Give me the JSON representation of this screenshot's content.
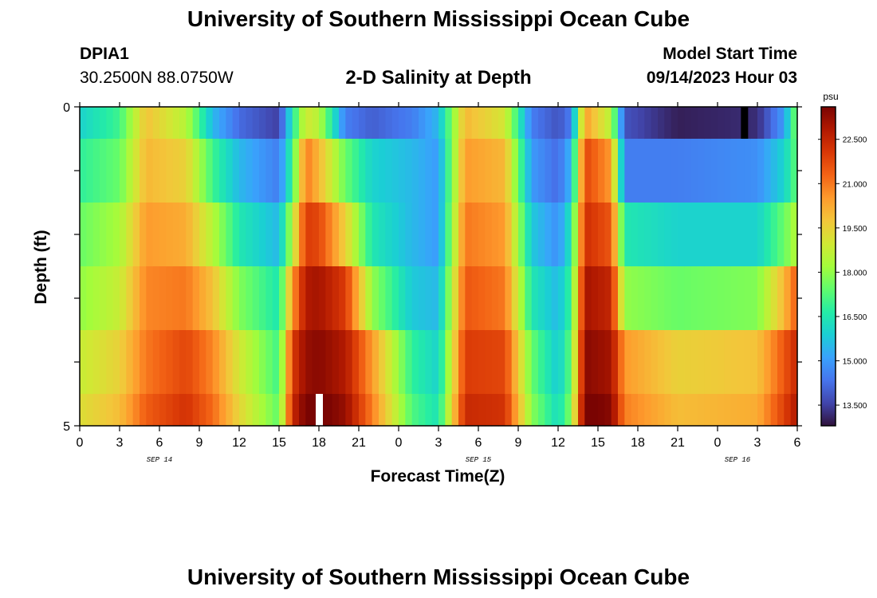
{
  "page": {
    "title_top": "University of Southern Mississippi Ocean Cube",
    "title_bottom": "University of Southern Mississippi Ocean Cube",
    "station_id": "DPIA1",
    "station_coords": "30.2500N  88.0750W",
    "chart_title": "2-D Salinity at Depth",
    "start_label": "Model Start Time",
    "start_time": "09/14/2023 Hour 03"
  },
  "colors": {
    "colormap": [
      "#30123b",
      "#4145ab",
      "#4675ed",
      "#39a2fc",
      "#1bcfd4",
      "#24eca6",
      "#61fc6c",
      "#a4fc3b",
      "#d1e834",
      "#f3c63a",
      "#fe9b2d",
      "#f36315",
      "#d93806",
      "#b11901",
      "#7a0402"
    ],
    "missing_dark": "#000000",
    "missing_light": "#ffffff"
  },
  "chart_data": {
    "type": "heatmap",
    "title": "2-D Salinity at Depth",
    "xlabel": "Forecast Time(Z)",
    "ylabel": "Depth (ft)",
    "colorbar_label": "psu",
    "value_range": [
      12.8,
      23.6
    ],
    "x_ticks": [
      "0",
      "3",
      "6",
      "9",
      "12",
      "15",
      "18",
      "21",
      "0",
      "3",
      "6",
      "9",
      "12",
      "15",
      "18",
      "21",
      "0",
      "3",
      "6"
    ],
    "date_labels": [
      {
        "text": "SEP 14",
        "tick_index": 2
      },
      {
        "text": "SEP 15",
        "tick_index": 10
      },
      {
        "text": "SEP 16",
        "tick_index": 16.5
      }
    ],
    "y_ticks": [
      "0",
      "5"
    ],
    "y_range": [
      0,
      5
    ],
    "colorbar_ticks": [
      "13.500",
      "15.000",
      "16.500",
      "18.000",
      "19.500",
      "21.000",
      "22.500"
    ],
    "colorbar_tick_values": [
      13.5,
      15.0,
      16.5,
      18.0,
      19.5,
      21.0,
      22.5
    ],
    "time_hours_total": 54,
    "hours_per_column": 0.5,
    "depth_rows": 5,
    "keyframes": [
      {
        "t": 0,
        "d": [
          16.0,
          16.8,
          17.5,
          18.0,
          18.8
        ]
      },
      {
        "t": 3,
        "d": [
          17.0,
          17.5,
          18.3,
          18.8,
          19.5
        ]
      },
      {
        "t": 5,
        "d": [
          19.8,
          20.0,
          20.5,
          20.8,
          21.0
        ]
      },
      {
        "t": 8,
        "d": [
          18.5,
          19.5,
          20.2,
          21.0,
          21.8
        ]
      },
      {
        "t": 10,
        "d": [
          15.5,
          17.0,
          18.5,
          19.8,
          20.8
        ]
      },
      {
        "t": 12,
        "d": [
          14.2,
          15.5,
          16.5,
          17.8,
          19.0
        ]
      },
      {
        "t": 15,
        "d": [
          13.5,
          14.5,
          15.5,
          16.5,
          17.0
        ]
      },
      {
        "t": 16,
        "d": [
          16.5,
          17.0,
          18.5,
          20.5,
          22.0
        ]
      },
      {
        "t": 17,
        "d": [
          19.0,
          21.0,
          22.0,
          22.8,
          23.2
        ]
      },
      {
        "t": 18,
        "d": [
          18.5,
          20.0,
          21.8,
          23.0,
          23.4
        ]
      },
      {
        "t": 20,
        "d": [
          14.5,
          17.5,
          19.5,
          22.0,
          22.8
        ]
      },
      {
        "t": 22,
        "d": [
          14.0,
          16.0,
          16.5,
          18.0,
          20.5
        ]
      },
      {
        "t": 25,
        "d": [
          14.5,
          15.5,
          15.5,
          15.8,
          16.8
        ]
      },
      {
        "t": 27,
        "d": [
          15.5,
          15.0,
          15.0,
          15.5,
          16.0
        ]
      },
      {
        "t": 29,
        "d": [
          20.0,
          20.5,
          21.0,
          21.5,
          22.0
        ]
      },
      {
        "t": 32,
        "d": [
          19.0,
          20.0,
          20.5,
          21.0,
          21.8
        ]
      },
      {
        "t": 34,
        "d": [
          14.5,
          15.0,
          15.8,
          16.5,
          17.5
        ]
      },
      {
        "t": 36,
        "d": [
          13.8,
          14.2,
          14.8,
          15.5,
          15.8
        ]
      },
      {
        "t": 37,
        "d": [
          14.5,
          15.5,
          16.5,
          17.0,
          17.5
        ]
      },
      {
        "t": 38,
        "d": [
          20.5,
          21.8,
          22.3,
          23.0,
          23.4
        ]
      },
      {
        "t": 40,
        "d": [
          18.5,
          20.5,
          21.5,
          22.5,
          23.0
        ]
      },
      {
        "t": 41,
        "d": [
          13.8,
          14.5,
          16.5,
          18.0,
          20.5
        ]
      },
      {
        "t": 45,
        "d": [
          13.0,
          14.5,
          16.0,
          17.5,
          19.5
        ]
      },
      {
        "t": 51,
        "d": [
          13.2,
          14.8,
          16.0,
          17.8,
          19.8
        ]
      },
      {
        "t": 53,
        "d": [
          15.0,
          16.0,
          17.5,
          20.0,
          21.5
        ]
      },
      {
        "t": 54,
        "d": [
          18.0,
          17.5,
          18.5,
          21.5,
          22.5
        ]
      }
    ],
    "missing_cells": [
      {
        "hour": 18.0,
        "depth_row": 4,
        "kind": "light"
      },
      {
        "hour": 50.0,
        "depth_row": 0,
        "kind": "dark"
      }
    ]
  }
}
